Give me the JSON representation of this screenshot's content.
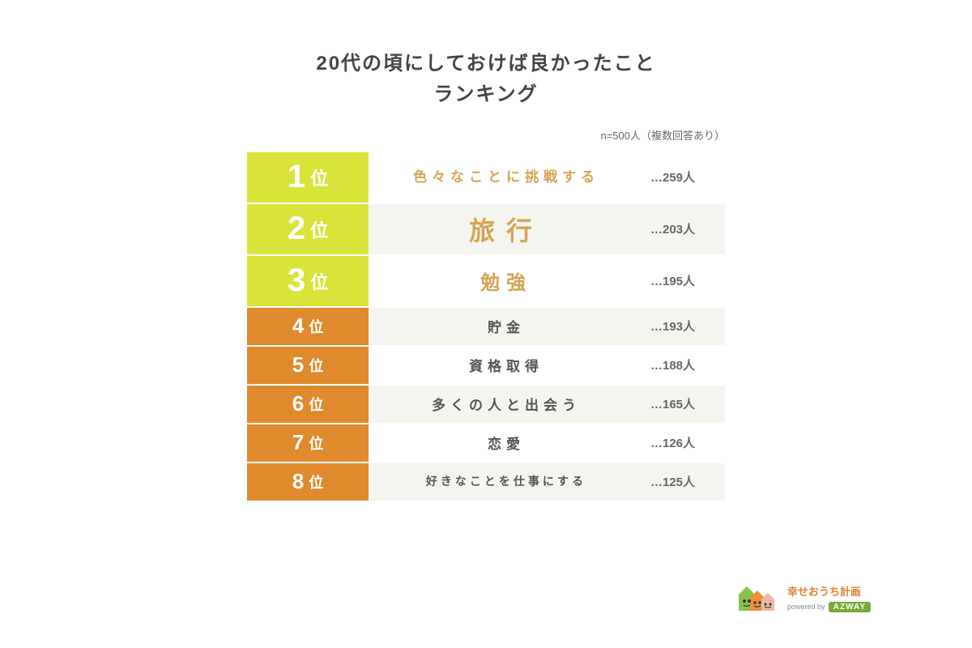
{
  "title": {
    "line1": "20代の頃にしておけば良かったこと",
    "line2": "ランキング",
    "color": "#444444",
    "fontsize": 24
  },
  "sample_note": "n=500人（複数回答あり）",
  "colors": {
    "top3_badge": "#d9e33a",
    "rest_badge": "#e08a2e",
    "top3_label": "#d4a556",
    "rest_label": "#555555",
    "alt_row_bg": "#f5f5f0",
    "count_text": "#666666",
    "background": "#ffffff"
  },
  "ranking": [
    {
      "rank": "1",
      "suffix": "位",
      "label_lines": [
        "色々なことに",
        "挑戦する"
      ],
      "count": "…259人",
      "tier": "top",
      "style": "twoline"
    },
    {
      "rank": "2",
      "suffix": "位",
      "label_lines": [
        "旅行"
      ],
      "count": "…203人",
      "tier": "top",
      "style": "biggest"
    },
    {
      "rank": "3",
      "suffix": "位",
      "label_lines": [
        "勉強"
      ],
      "count": "…195人",
      "tier": "top",
      "style": "big"
    },
    {
      "rank": "4",
      "suffix": "位",
      "label_lines": [
        "貯金"
      ],
      "count": "…193人",
      "tier": "rest",
      "style": "small"
    },
    {
      "rank": "5",
      "suffix": "位",
      "label_lines": [
        "資格取得"
      ],
      "count": "…188人",
      "tier": "rest",
      "style": "small"
    },
    {
      "rank": "6",
      "suffix": "位",
      "label_lines": [
        "多くの人と出会う"
      ],
      "count": "…165人",
      "tier": "rest",
      "style": "small"
    },
    {
      "rank": "7",
      "suffix": "位",
      "label_lines": [
        "恋愛"
      ],
      "count": "…126人",
      "tier": "rest",
      "style": "small"
    },
    {
      "rank": "8",
      "suffix": "位",
      "label_lines": [
        "好きなことを仕事",
        "にする"
      ],
      "count": "…125人",
      "tier": "rest",
      "style": "smalltwo"
    }
  ],
  "logo": {
    "title": "幸せおうち計画",
    "powered": "powered by",
    "brand": "AZWAY",
    "house_colors": [
      "#8bc34a",
      "#ef8f3a",
      "#e8b8a8"
    ]
  }
}
